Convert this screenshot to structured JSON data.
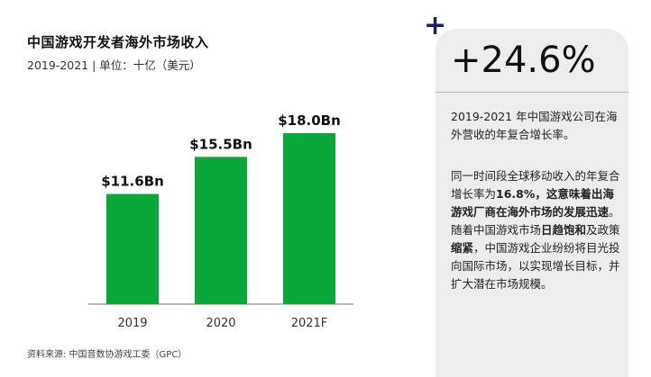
{
  "header": {
    "title": "中国游戏开发者海外市场收入",
    "subtitle": "2019-2021 | 单位：十亿（美元）"
  },
  "chart_data": {
    "type": "bar",
    "categories": [
      "2019",
      "2020",
      "2021F"
    ],
    "values": [
      11.6,
      15.5,
      18.0
    ],
    "value_labels": [
      "$11.6Bn",
      "$15.5Bn",
      "$18.0Bn"
    ],
    "title": "中国游戏开发者海外市场收入",
    "subtitle": "2019-2021 | 单位：十亿（美元）",
    "ylim": [
      0,
      18.0
    ],
    "grid": false,
    "bar_color": "#0aa83a",
    "axis_color": "#777777"
  },
  "source": "资料来源: 中国音数协游戏工委（GPC）",
  "sidebar": {
    "plus_symbol": "+",
    "headline": "+24.6%",
    "description_1": "2019-2021 年中国游戏公司在海外营收的年复合增长率。",
    "description_2_parts": [
      "同一时间段全球移动收入的年复合增长率为",
      "16.8%，这意味着出海游戏厂商在海外市场的发展迅速",
      "。随着中国游戏市场",
      "日趋饱和",
      "及政策",
      "缩紧",
      "，中国游戏企业纷纷将目光投向国际市场，以实现增长目标，并扩大潜在市场规模。"
    ],
    "accent_color": "#1a1f6e",
    "panel_color": "#ededed"
  }
}
